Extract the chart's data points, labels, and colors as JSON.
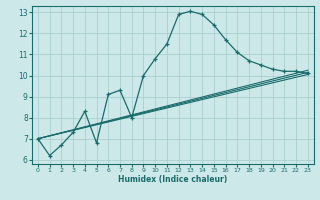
{
  "xlabel": "Humidex (Indice chaleur)",
  "ylabel": "",
  "bg_color": "#cce8e8",
  "grid_color": "#aacfcf",
  "line_color": "#1a6b6b",
  "xlim": [
    -0.5,
    23.5
  ],
  "ylim": [
    5.8,
    13.3
  ],
  "xticks": [
    0,
    1,
    2,
    3,
    4,
    5,
    6,
    7,
    8,
    9,
    10,
    11,
    12,
    13,
    14,
    15,
    16,
    17,
    18,
    19,
    20,
    21,
    22,
    23
  ],
  "yticks": [
    6,
    7,
    8,
    9,
    10,
    11,
    12,
    13
  ],
  "main_x": [
    0,
    1,
    2,
    3,
    4,
    5,
    6,
    7,
    8,
    9,
    10,
    11,
    12,
    13,
    14,
    15,
    16,
    17,
    18,
    19,
    20,
    21,
    22,
    23
  ],
  "main_y": [
    7.0,
    6.2,
    6.7,
    7.3,
    8.3,
    6.8,
    9.1,
    9.3,
    8.0,
    10.0,
    10.8,
    11.5,
    12.9,
    13.05,
    12.9,
    12.4,
    11.7,
    11.1,
    10.7,
    10.5,
    10.3,
    10.2,
    10.2,
    10.1
  ],
  "line2_x": [
    0,
    23
  ],
  "line2_y": [
    7.0,
    10.25
  ],
  "line3_x": [
    0,
    23
  ],
  "line3_y": [
    7.0,
    10.15
  ],
  "line4_x": [
    0,
    23
  ],
  "line4_y": [
    7.0,
    10.05
  ]
}
